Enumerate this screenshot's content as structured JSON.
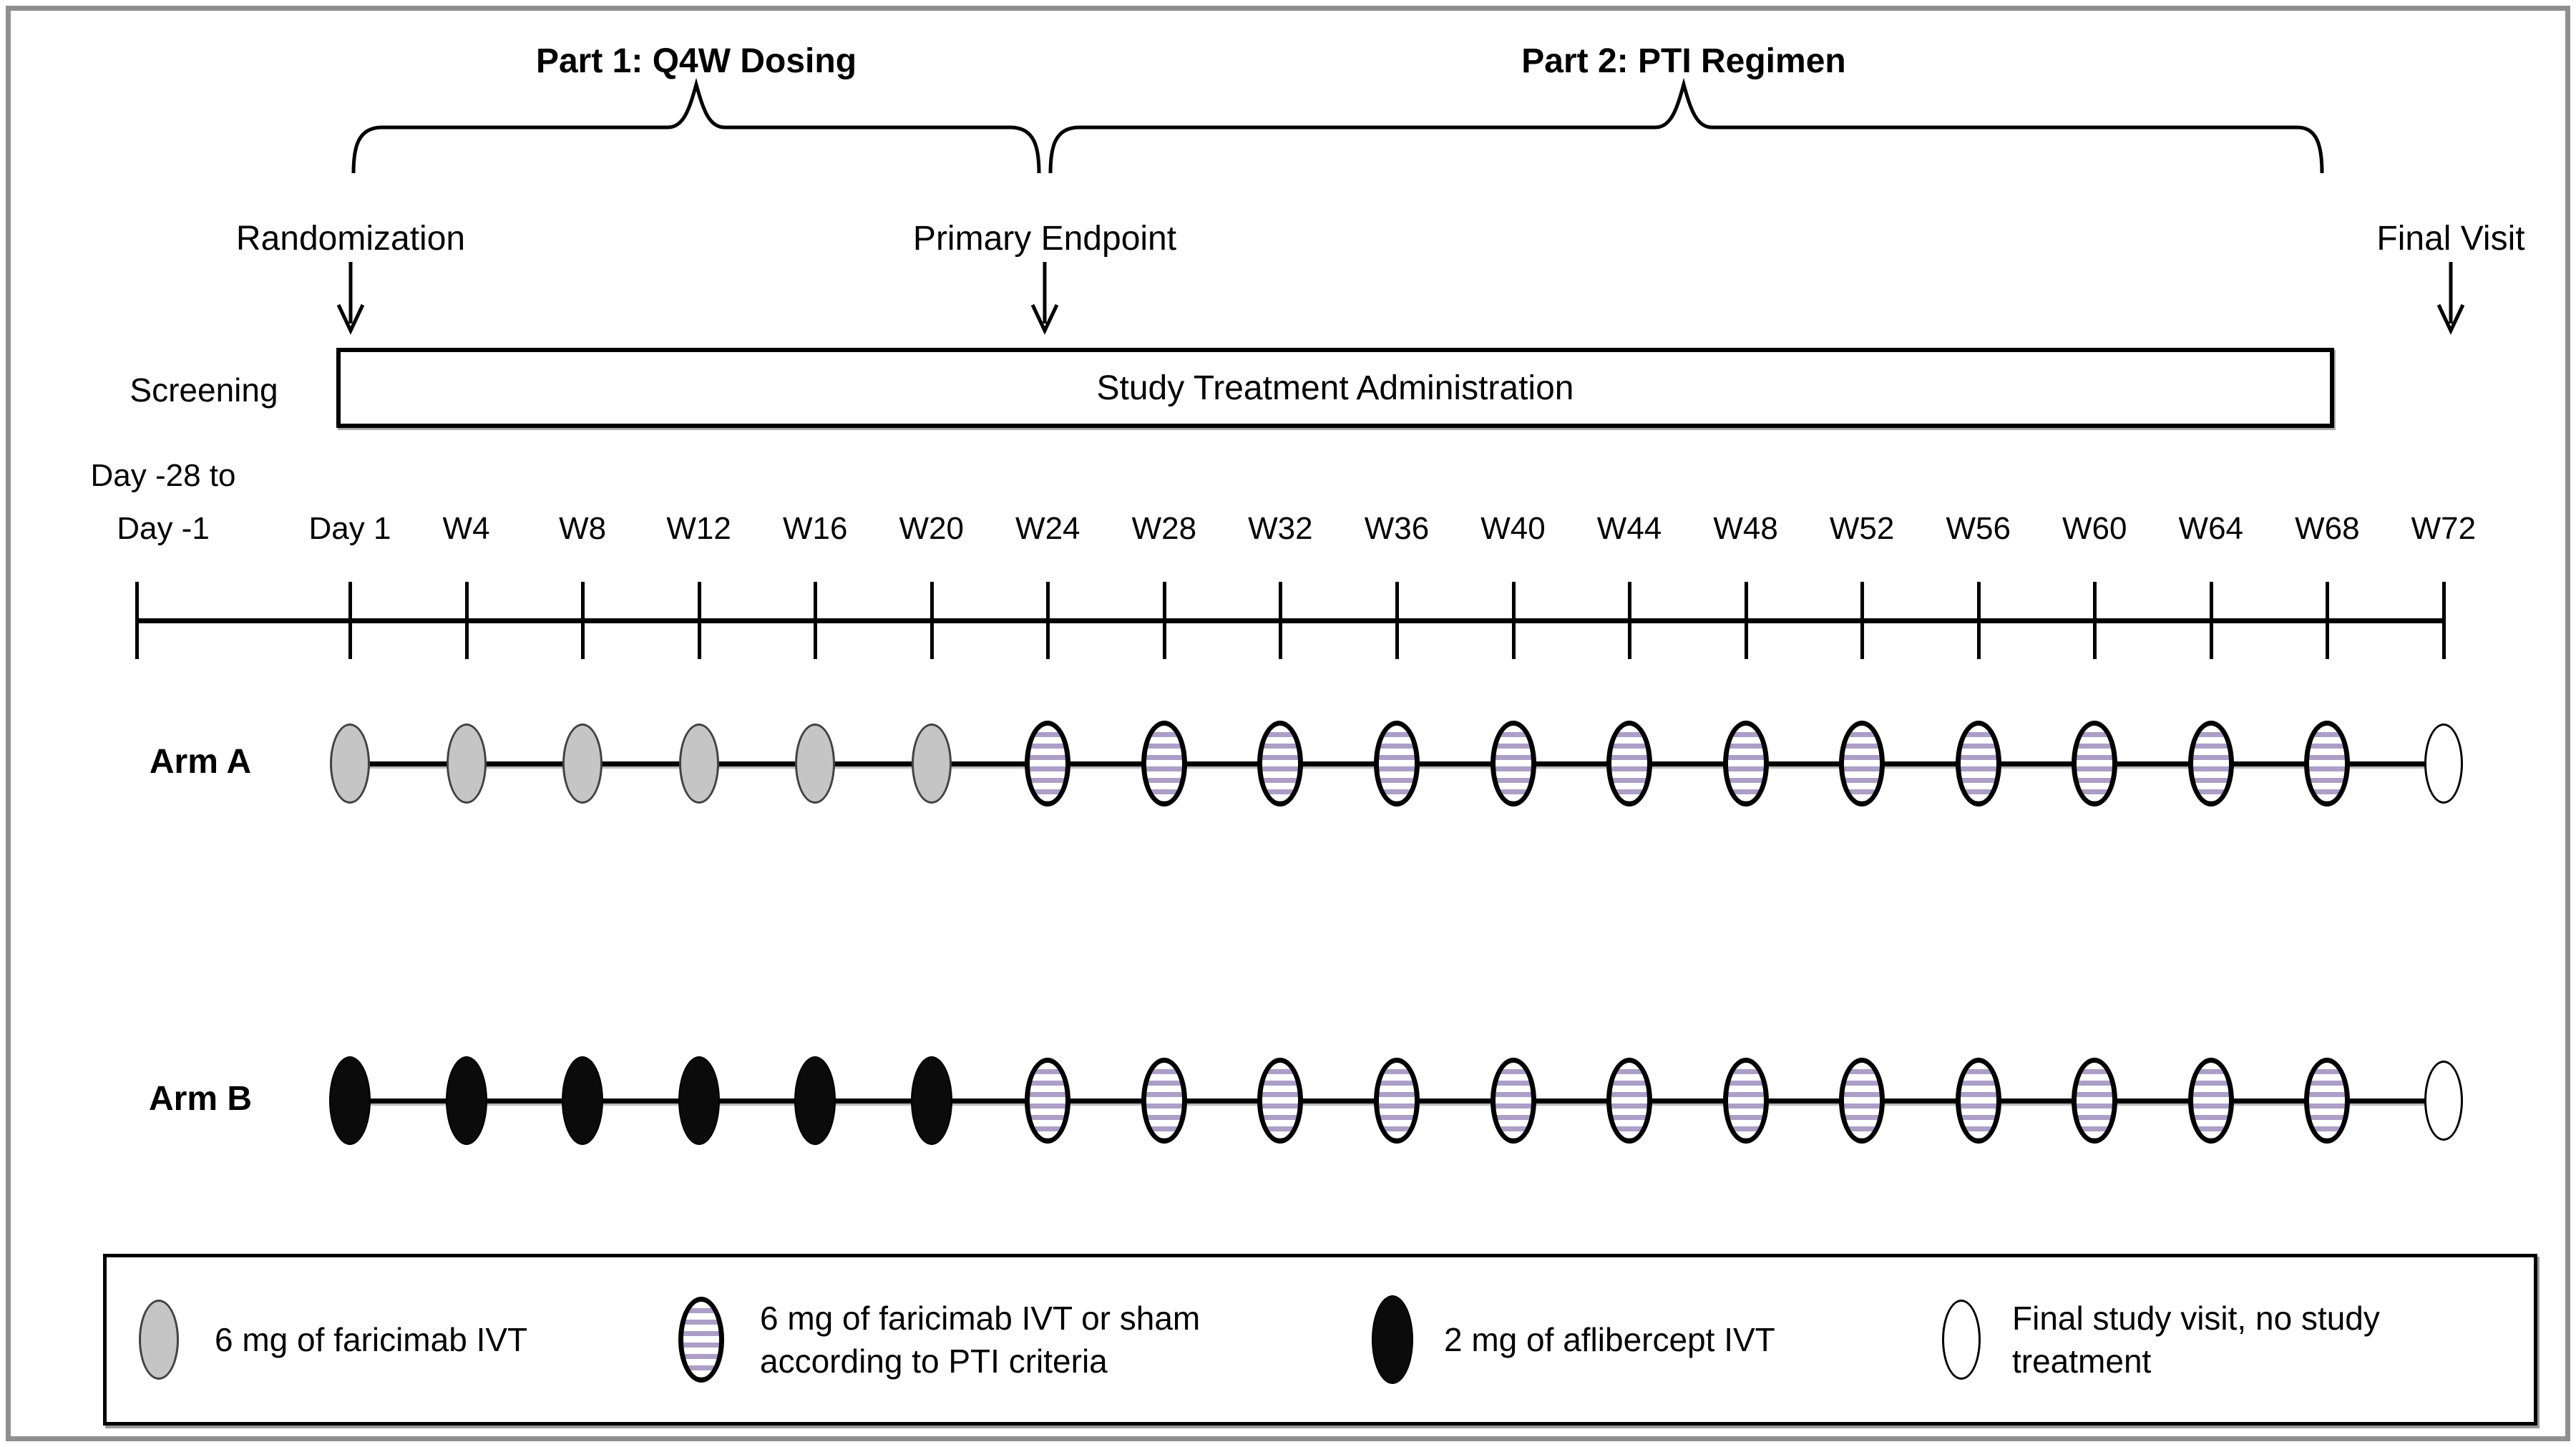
{
  "figure": {
    "part1_label": "Part 1: Q4W Dosing",
    "part2_label": "Part 2: PTI Regimen",
    "randomization_label": "Randomization",
    "primary_endpoint_label": "Primary Endpoint",
    "final_visit_label": "Final Visit",
    "screening_label": "Screening",
    "treatment_box_label": "Study Treatment Administration",
    "timeline": {
      "prebaseline_label_line1": "Day -28 to",
      "prebaseline_label_line2": "Day -1",
      "points": [
        "Day 1",
        "W4",
        "W8",
        "W12",
        "W16",
        "W20",
        "W24",
        "W28",
        "W32",
        "W36",
        "W40",
        "W44",
        "W48",
        "W52",
        "W56",
        "W60",
        "W64",
        "W68",
        "W72"
      ]
    },
    "arms": [
      {
        "label": "Arm A",
        "dose_sequence": [
          "gray",
          "gray",
          "gray",
          "gray",
          "gray",
          "gray",
          "striped",
          "striped",
          "striped",
          "striped",
          "striped",
          "striped",
          "striped",
          "striped",
          "striped",
          "striped",
          "striped",
          "striped",
          "white"
        ]
      },
      {
        "label": "Arm B",
        "dose_sequence": [
          "black",
          "black",
          "black",
          "black",
          "black",
          "black",
          "striped",
          "striped",
          "striped",
          "striped",
          "striped",
          "striped",
          "striped",
          "striped",
          "striped",
          "striped",
          "striped",
          "striped",
          "white"
        ]
      }
    ],
    "legend": [
      {
        "symbol": "gray",
        "lines": [
          "6 mg of faricimab IVT"
        ]
      },
      {
        "symbol": "striped",
        "lines": [
          "6 mg of faricimab IVT or sham",
          "according to PTI criteria"
        ]
      },
      {
        "symbol": "black",
        "lines": [
          "2 mg of aflibercept IVT"
        ]
      },
      {
        "symbol": "white",
        "lines": [
          "Final study visit, no study",
          "treatment"
        ]
      }
    ],
    "colors": {
      "gray_fill": "#c5c5c5",
      "stripe_color": "#ac9ec7",
      "black_fill": "#0b0b0b",
      "outline": "#000000"
    }
  }
}
